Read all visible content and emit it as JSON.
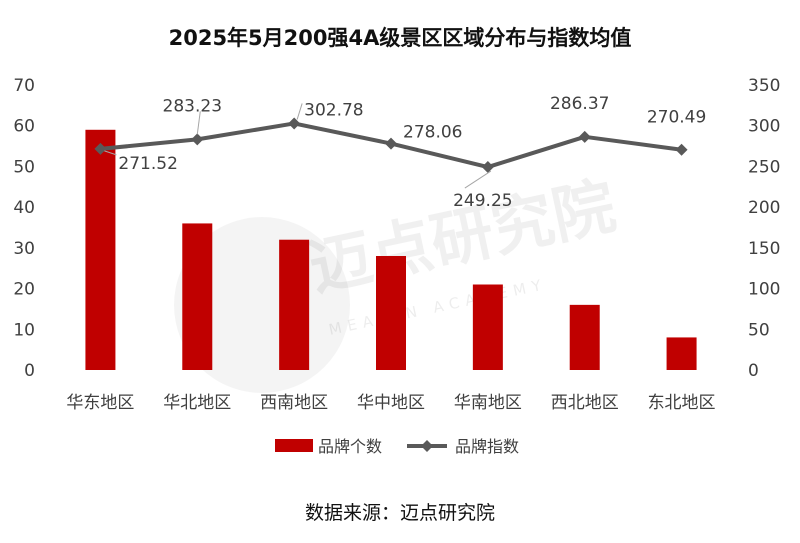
{
  "chart_data": {
    "type": "bar",
    "title": "2025年5月200强4A级景区区域分布与指数均值",
    "categories": [
      "华东地区",
      "华北地区",
      "西南地区",
      "华中地区",
      "华南地区",
      "西北地区",
      "东北地区"
    ],
    "series": [
      {
        "name": "品牌个数",
        "type": "bar",
        "axis": "left",
        "color": "#C00000",
        "values": [
          59,
          36,
          32,
          28,
          21,
          16,
          8
        ]
      },
      {
        "name": "品牌指数",
        "type": "line",
        "axis": "right",
        "color": "#595959",
        "values": [
          271.52,
          283.23,
          302.78,
          278.06,
          249.25,
          286.37,
          270.49
        ],
        "labels": [
          "271.52",
          "283.23",
          "302.78",
          "278.06",
          "249.25",
          "286.37",
          "270.49"
        ]
      }
    ],
    "y_left": {
      "min": 0,
      "max": 70,
      "ticks": [
        "0",
        "10",
        "20",
        "30",
        "40",
        "50",
        "60",
        "70"
      ]
    },
    "y_right": {
      "min": 0,
      "max": 350,
      "ticks": [
        "0",
        "50",
        "100",
        "150",
        "200",
        "250",
        "300",
        "350"
      ]
    },
    "grid": false,
    "legend_position": "bottom"
  },
  "watermark": {
    "text": "迈点研究院",
    "subtext": "MEADIN ACADEMY"
  },
  "source": "数据来源：迈点研究院"
}
